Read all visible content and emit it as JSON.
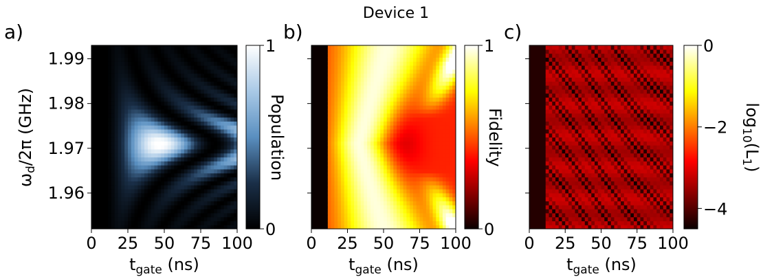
{
  "title": "Device 1",
  "chart_data": [
    {
      "type": "heatmap",
      "panel_label": "a)",
      "xlabel": "t_gate (ns)",
      "ylabel": "ω_d/2π (GHz)",
      "colorbar_label": "Population",
      "xlim": [
        0,
        100
      ],
      "ylim": [
        1.952,
        1.993
      ],
      "xticks": [
        "0",
        "25",
        "50",
        "75",
        "100"
      ],
      "yticks": [
        "1.99",
        "1.98",
        "1.97",
        "1.96"
      ],
      "colorbar_ticks": [
        "1",
        "0"
      ],
      "colorbar_range": [
        0,
        1
      ],
      "colormap": "Blues_r"
    },
    {
      "type": "heatmap",
      "panel_label": "b)",
      "xlabel": "t_gate (ns)",
      "ylabel": "",
      "colorbar_label": "Fidelity",
      "xlim": [
        0,
        100
      ],
      "ylim": [
        1.952,
        1.993
      ],
      "xticks": [
        "0",
        "25",
        "50",
        "75",
        "100"
      ],
      "yticks": [],
      "colorbar_ticks": [
        "1",
        "0"
      ],
      "colorbar_range": [
        0,
        1
      ],
      "colormap": "hot"
    },
    {
      "type": "heatmap",
      "panel_label": "c)",
      "xlabel": "t_gate (ns)",
      "ylabel": "",
      "colorbar_label": "log10(L1)",
      "xlim": [
        0,
        100
      ],
      "ylim": [
        1.952,
        1.993
      ],
      "xticks": [
        "0",
        "25",
        "50",
        "75",
        "100"
      ],
      "yticks": [],
      "colorbar_ticks": [
        "0",
        "−2",
        "−4"
      ],
      "colorbar_range": [
        -4.5,
        0
      ],
      "colormap": "hot"
    }
  ]
}
